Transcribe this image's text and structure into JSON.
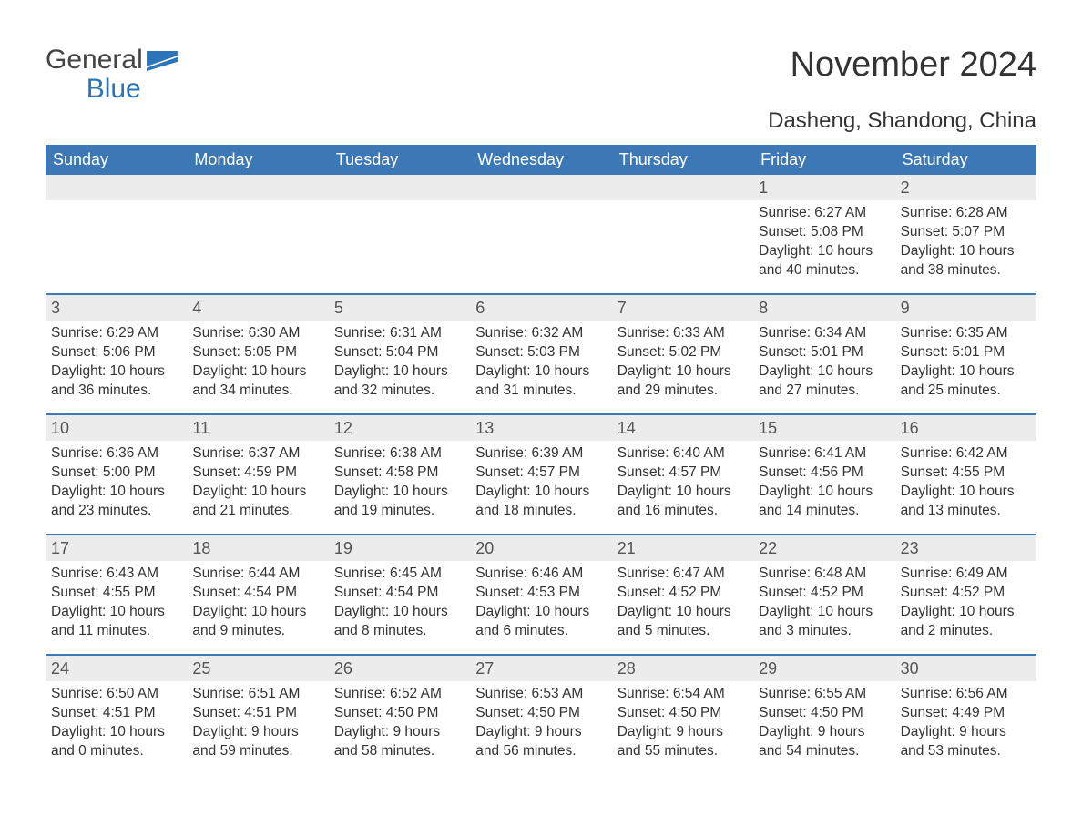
{
  "brand": {
    "line1": "General",
    "line2": "Blue",
    "logo_color": "#2b74b8"
  },
  "title": "November 2024",
  "location": "Dasheng, Shandong, China",
  "colors": {
    "header_bg": "#3b78b5",
    "header_fg": "#ffffff",
    "row_rule": "#3b78b5",
    "daynum_bg": "#ececec",
    "text": "#333333",
    "page_bg": "#ffffff"
  },
  "dow": [
    "Sunday",
    "Monday",
    "Tuesday",
    "Wednesday",
    "Thursday",
    "Friday",
    "Saturday"
  ],
  "weeks": [
    [
      {
        "empty": true
      },
      {
        "empty": true
      },
      {
        "empty": true
      },
      {
        "empty": true
      },
      {
        "empty": true
      },
      {
        "day": "1",
        "sunrise": "6:27 AM",
        "sunset": "5:08 PM",
        "daylight": "10 hours and 40 minutes."
      },
      {
        "day": "2",
        "sunrise": "6:28 AM",
        "sunset": "5:07 PM",
        "daylight": "10 hours and 38 minutes."
      }
    ],
    [
      {
        "day": "3",
        "sunrise": "6:29 AM",
        "sunset": "5:06 PM",
        "daylight": "10 hours and 36 minutes."
      },
      {
        "day": "4",
        "sunrise": "6:30 AM",
        "sunset": "5:05 PM",
        "daylight": "10 hours and 34 minutes."
      },
      {
        "day": "5",
        "sunrise": "6:31 AM",
        "sunset": "5:04 PM",
        "daylight": "10 hours and 32 minutes."
      },
      {
        "day": "6",
        "sunrise": "6:32 AM",
        "sunset": "5:03 PM",
        "daylight": "10 hours and 31 minutes."
      },
      {
        "day": "7",
        "sunrise": "6:33 AM",
        "sunset": "5:02 PM",
        "daylight": "10 hours and 29 minutes."
      },
      {
        "day": "8",
        "sunrise": "6:34 AM",
        "sunset": "5:01 PM",
        "daylight": "10 hours and 27 minutes."
      },
      {
        "day": "9",
        "sunrise": "6:35 AM",
        "sunset": "5:01 PM",
        "daylight": "10 hours and 25 minutes."
      }
    ],
    [
      {
        "day": "10",
        "sunrise": "6:36 AM",
        "sunset": "5:00 PM",
        "daylight": "10 hours and 23 minutes."
      },
      {
        "day": "11",
        "sunrise": "6:37 AM",
        "sunset": "4:59 PM",
        "daylight": "10 hours and 21 minutes."
      },
      {
        "day": "12",
        "sunrise": "6:38 AM",
        "sunset": "4:58 PM",
        "daylight": "10 hours and 19 minutes."
      },
      {
        "day": "13",
        "sunrise": "6:39 AM",
        "sunset": "4:57 PM",
        "daylight": "10 hours and 18 minutes."
      },
      {
        "day": "14",
        "sunrise": "6:40 AM",
        "sunset": "4:57 PM",
        "daylight": "10 hours and 16 minutes."
      },
      {
        "day": "15",
        "sunrise": "6:41 AM",
        "sunset": "4:56 PM",
        "daylight": "10 hours and 14 minutes."
      },
      {
        "day": "16",
        "sunrise": "6:42 AM",
        "sunset": "4:55 PM",
        "daylight": "10 hours and 13 minutes."
      }
    ],
    [
      {
        "day": "17",
        "sunrise": "6:43 AM",
        "sunset": "4:55 PM",
        "daylight": "10 hours and 11 minutes."
      },
      {
        "day": "18",
        "sunrise": "6:44 AM",
        "sunset": "4:54 PM",
        "daylight": "10 hours and 9 minutes."
      },
      {
        "day": "19",
        "sunrise": "6:45 AM",
        "sunset": "4:54 PM",
        "daylight": "10 hours and 8 minutes."
      },
      {
        "day": "20",
        "sunrise": "6:46 AM",
        "sunset": "4:53 PM",
        "daylight": "10 hours and 6 minutes."
      },
      {
        "day": "21",
        "sunrise": "6:47 AM",
        "sunset": "4:52 PM",
        "daylight": "10 hours and 5 minutes."
      },
      {
        "day": "22",
        "sunrise": "6:48 AM",
        "sunset": "4:52 PM",
        "daylight": "10 hours and 3 minutes."
      },
      {
        "day": "23",
        "sunrise": "6:49 AM",
        "sunset": "4:52 PM",
        "daylight": "10 hours and 2 minutes."
      }
    ],
    [
      {
        "day": "24",
        "sunrise": "6:50 AM",
        "sunset": "4:51 PM",
        "daylight": "10 hours and 0 minutes."
      },
      {
        "day": "25",
        "sunrise": "6:51 AM",
        "sunset": "4:51 PM",
        "daylight": "9 hours and 59 minutes."
      },
      {
        "day": "26",
        "sunrise": "6:52 AM",
        "sunset": "4:50 PM",
        "daylight": "9 hours and 58 minutes."
      },
      {
        "day": "27",
        "sunrise": "6:53 AM",
        "sunset": "4:50 PM",
        "daylight": "9 hours and 56 minutes."
      },
      {
        "day": "28",
        "sunrise": "6:54 AM",
        "sunset": "4:50 PM",
        "daylight": "9 hours and 55 minutes."
      },
      {
        "day": "29",
        "sunrise": "6:55 AM",
        "sunset": "4:50 PM",
        "daylight": "9 hours and 54 minutes."
      },
      {
        "day": "30",
        "sunrise": "6:56 AM",
        "sunset": "4:49 PM",
        "daylight": "9 hours and 53 minutes."
      }
    ]
  ],
  "labels": {
    "sunrise": "Sunrise: ",
    "sunset": "Sunset: ",
    "daylight": "Daylight: "
  }
}
